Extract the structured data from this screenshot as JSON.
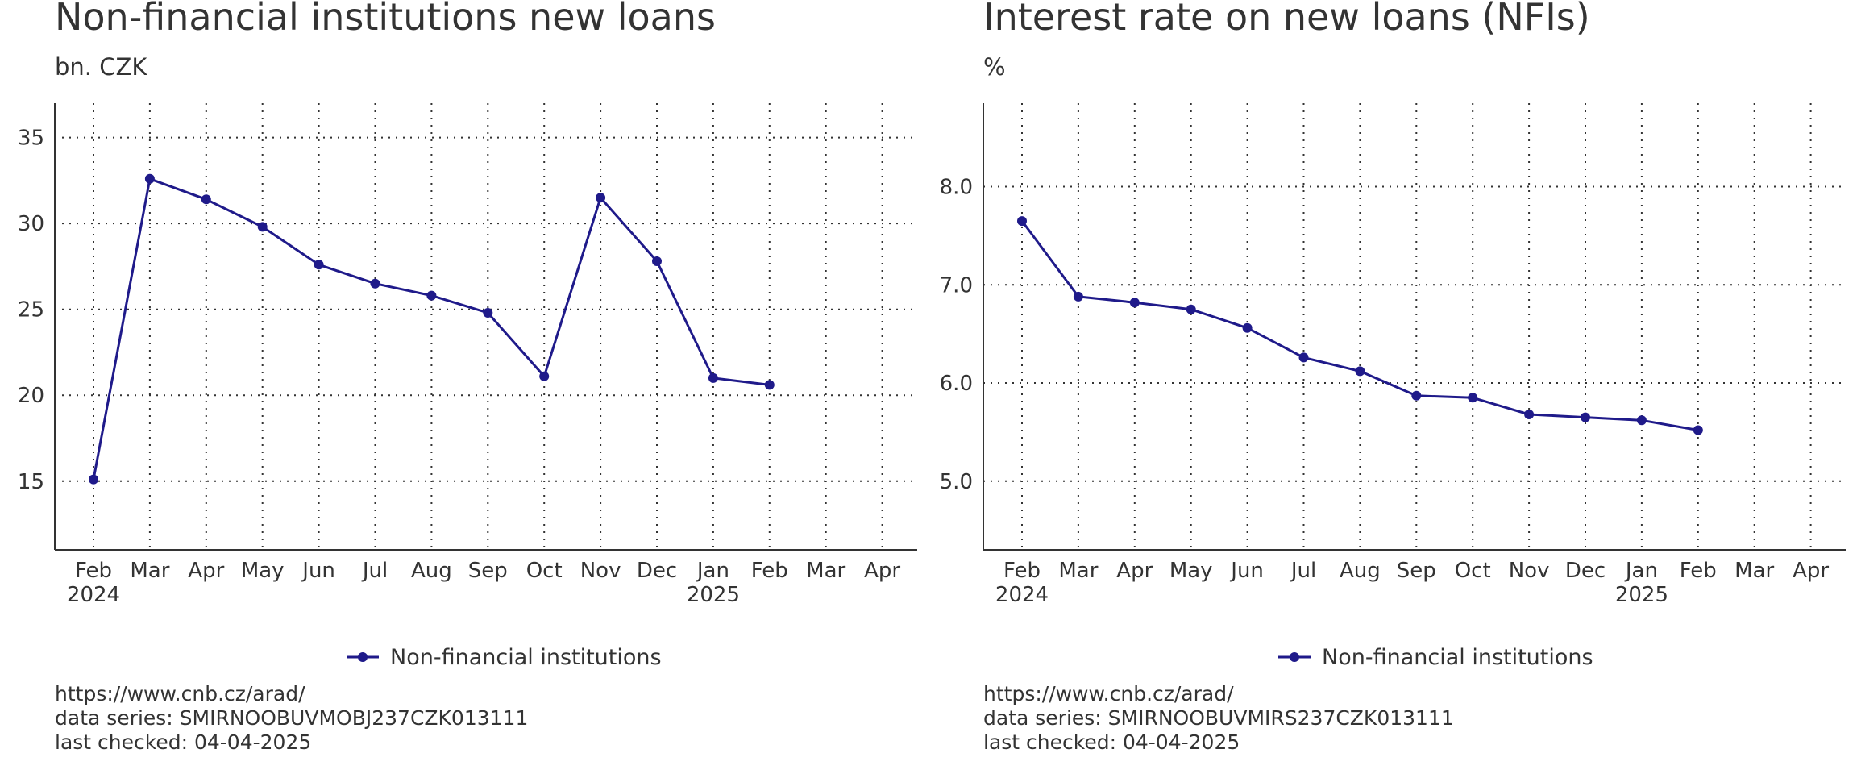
{
  "colors": {
    "series": "#1f1a8a",
    "axis": "#333333",
    "grid": "#333333",
    "text": "#333333"
  },
  "charts": [
    {
      "title": "Non-financial institutions new loans",
      "subtitle": "bn. CZK",
      "source": {
        "url": "https://www.cnb.cz/arad/",
        "series": "data series: SMIRNOOBUVMOBJ237CZK013111",
        "checked": "last checked: 04-04-2025"
      }
    },
    {
      "title": "Interest rate on new loans (NFIs)",
      "subtitle": "%",
      "source": {
        "url": "https://www.cnb.cz/arad/",
        "series": "data series: SMIRNOOBUVMIRS237CZK013111",
        "checked": "last checked: 04-04-2025"
      }
    }
  ],
  "chart_data": [
    {
      "type": "line",
      "title": "Non-financial institutions new loans",
      "subtitle": "bn. CZK",
      "xlabel": "",
      "ylabel": "",
      "x_ticks": [
        {
          "month": "Feb",
          "year": "2024"
        },
        {
          "month": "Mar",
          "year": ""
        },
        {
          "month": "Apr",
          "year": ""
        },
        {
          "month": "May",
          "year": ""
        },
        {
          "month": "Jun",
          "year": ""
        },
        {
          "month": "Jul",
          "year": ""
        },
        {
          "month": "Aug",
          "year": ""
        },
        {
          "month": "Sep",
          "year": ""
        },
        {
          "month": "Oct",
          "year": ""
        },
        {
          "month": "Nov",
          "year": ""
        },
        {
          "month": "Dec",
          "year": ""
        },
        {
          "month": "Jan",
          "year": "2025"
        },
        {
          "month": "Feb",
          "year": ""
        },
        {
          "month": "Mar",
          "year": ""
        },
        {
          "month": "Apr",
          "year": ""
        }
      ],
      "categories": [
        "2024-02",
        "2024-03",
        "2024-04",
        "2024-05",
        "2024-06",
        "2024-07",
        "2024-08",
        "2024-09",
        "2024-10",
        "2024-11",
        "2024-12",
        "2025-01",
        "2025-02",
        "2025-03",
        "2025-04"
      ],
      "series": [
        {
          "name": "Non-financial institutions",
          "values": [
            15.1,
            32.6,
            31.4,
            29.8,
            27.6,
            26.5,
            25.8,
            24.8,
            21.1,
            31.5,
            27.8,
            21.0,
            20.6,
            null,
            null
          ]
        }
      ],
      "y_ticks": [
        "15",
        "20",
        "25",
        "30",
        "35"
      ],
      "y_tick_values": [
        15,
        20,
        25,
        30,
        35
      ],
      "ylim": [
        11,
        37
      ],
      "grid": true,
      "legend": "bottom-center"
    },
    {
      "type": "line",
      "title": "Interest rate on new loans (NFIs)",
      "subtitle": "%",
      "xlabel": "",
      "ylabel": "",
      "x_ticks": [
        {
          "month": "Feb",
          "year": "2024"
        },
        {
          "month": "Mar",
          "year": ""
        },
        {
          "month": "Apr",
          "year": ""
        },
        {
          "month": "May",
          "year": ""
        },
        {
          "month": "Jun",
          "year": ""
        },
        {
          "month": "Jul",
          "year": ""
        },
        {
          "month": "Aug",
          "year": ""
        },
        {
          "month": "Sep",
          "year": ""
        },
        {
          "month": "Oct",
          "year": ""
        },
        {
          "month": "Nov",
          "year": ""
        },
        {
          "month": "Dec",
          "year": ""
        },
        {
          "month": "Jan",
          "year": "2025"
        },
        {
          "month": "Feb",
          "year": ""
        },
        {
          "month": "Mar",
          "year": ""
        },
        {
          "month": "Apr",
          "year": ""
        }
      ],
      "categories": [
        "2024-02",
        "2024-03",
        "2024-04",
        "2024-05",
        "2024-06",
        "2024-07",
        "2024-08",
        "2024-09",
        "2024-10",
        "2024-11",
        "2024-12",
        "2025-01",
        "2025-02",
        "2025-03",
        "2025-04"
      ],
      "series": [
        {
          "name": "Non-financial institutions",
          "values": [
            7.65,
            6.88,
            6.82,
            6.75,
            6.56,
            6.26,
            6.12,
            5.87,
            5.85,
            5.68,
            5.65,
            5.62,
            5.52,
            null,
            null
          ]
        }
      ],
      "y_ticks": [
        "5.0",
        "6.0",
        "7.0",
        "8.0"
      ],
      "y_tick_values": [
        5.0,
        6.0,
        7.0,
        8.0
      ],
      "ylim": [
        4.3,
        8.85
      ],
      "grid": true,
      "legend": "bottom-center"
    }
  ]
}
